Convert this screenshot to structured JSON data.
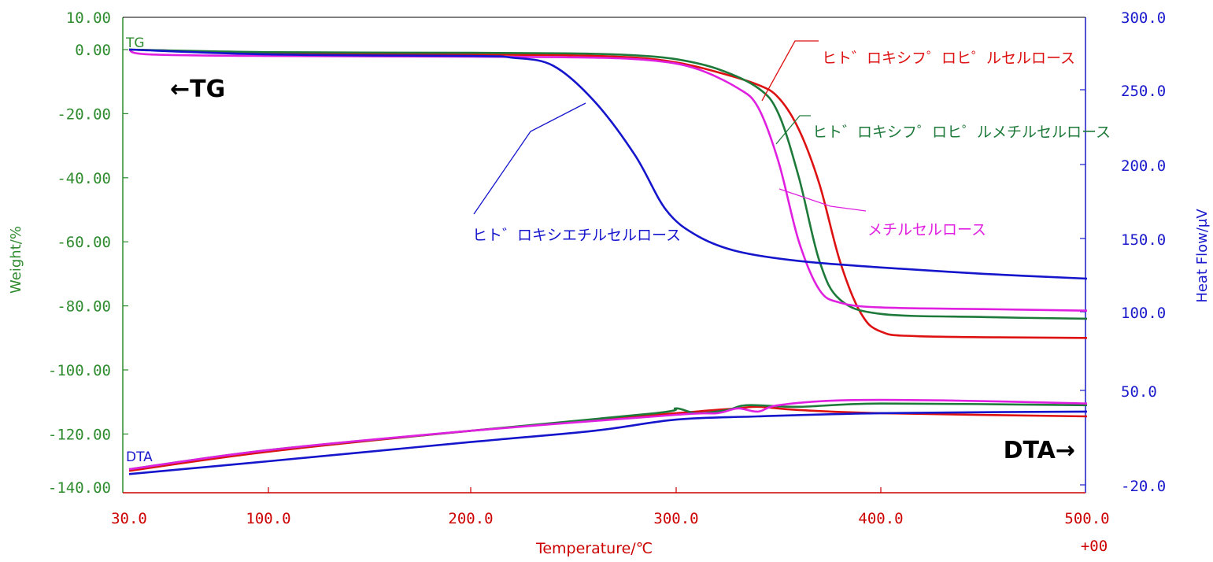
{
  "chart_data": {
    "type": "line",
    "xlabel": "Temperature/℃",
    "x_suffix": "+00",
    "ylabel_left": "Weight/%",
    "ylabel_right": "Heat Flow/μV",
    "x_ticks": [
      "30.0",
      "100.0",
      "200.0",
      "300.0",
      "400.0",
      "500.0"
    ],
    "y_left_ticks": [
      "10.00",
      "0.00",
      "-20.00",
      "-40.00",
      "-60.00",
      "-80.00",
      "-100.00",
      "-120.00",
      "-140.00"
    ],
    "y_right_ticks": [
      "300.0",
      "250.0",
      "200.0",
      "150.0",
      "100.0",
      "50.0",
      "-20.0"
    ],
    "xlim": [
      30,
      500
    ],
    "ylim_left": [
      -140,
      10
    ],
    "grid": false,
    "annotations": {
      "tg_arrow": "←TG",
      "dta_arrow": "DTA→",
      "tg_tag": "TG",
      "dta_tag": "DTA"
    },
    "colors": {
      "axis_left": "#2e8b2e",
      "axis_right": "#1a1acc",
      "axis_x": "#cc0000",
      "hpc": "#dd1111",
      "hpmc": "#1e7a3a",
      "mc": "#e020e0",
      "hec": "#1515cc"
    },
    "series": [
      {
        "name": "ヒト゛ロキシフ゜ロヒ゜ルセルロース",
        "color_key": "hpc",
        "tg": [
          [
            30,
            0
          ],
          [
            100,
            -1
          ],
          [
            200,
            -1.5
          ],
          [
            250,
            -1.8
          ],
          [
            280,
            -2.5
          ],
          [
            300,
            -4
          ],
          [
            320,
            -7
          ],
          [
            340,
            -11
          ],
          [
            350,
            -15
          ],
          [
            360,
            -25
          ],
          [
            370,
            -42
          ],
          [
            380,
            -66
          ],
          [
            390,
            -82
          ],
          [
            400,
            -88
          ],
          [
            420,
            -89.5
          ],
          [
            500,
            -90
          ]
        ],
        "dta": [
          [
            30,
            -131.5
          ],
          [
            100,
            -125.5
          ],
          [
            200,
            -119
          ],
          [
            300,
            -113.5
          ],
          [
            330,
            -112
          ],
          [
            340,
            -111.5
          ],
          [
            360,
            -112.5
          ],
          [
            400,
            -113.5
          ],
          [
            500,
            -114.5
          ]
        ]
      },
      {
        "name": "ヒト゛ロキシフ゜ロヒ゜ルメチルセルロース",
        "color_key": "hpmc",
        "tg": [
          [
            30,
            0
          ],
          [
            100,
            -0.8
          ],
          [
            200,
            -1
          ],
          [
            250,
            -1.2
          ],
          [
            280,
            -1.8
          ],
          [
            300,
            -3
          ],
          [
            320,
            -6
          ],
          [
            340,
            -12
          ],
          [
            350,
            -20
          ],
          [
            360,
            -40
          ],
          [
            370,
            -66
          ],
          [
            380,
            -78
          ],
          [
            400,
            -82.5
          ],
          [
            450,
            -83.5
          ],
          [
            500,
            -84
          ]
        ],
        "dta": [
          [
            30,
            -131
          ],
          [
            100,
            -125
          ],
          [
            200,
            -119
          ],
          [
            290,
            -113.5
          ],
          [
            300,
            -112
          ],
          [
            310,
            -113.5
          ],
          [
            325,
            -112.5
          ],
          [
            335,
            -111
          ],
          [
            360,
            -111.5
          ],
          [
            400,
            -110.5
          ],
          [
            500,
            -111
          ]
        ]
      },
      {
        "name": "メチルセルロース",
        "color_key": "mc",
        "tg": [
          [
            30,
            0
          ],
          [
            40,
            -1.5
          ],
          [
            100,
            -2
          ],
          [
            200,
            -2.2
          ],
          [
            260,
            -2.5
          ],
          [
            290,
            -3.5
          ],
          [
            310,
            -6
          ],
          [
            330,
            -12
          ],
          [
            340,
            -18
          ],
          [
            350,
            -35
          ],
          [
            360,
            -60
          ],
          [
            370,
            -75
          ],
          [
            380,
            -79
          ],
          [
            400,
            -80.5
          ],
          [
            450,
            -81
          ],
          [
            500,
            -81.5
          ]
        ],
        "dta": [
          [
            30,
            -131
          ],
          [
            100,
            -125
          ],
          [
            200,
            -119
          ],
          [
            300,
            -114
          ],
          [
            320,
            -113.5
          ],
          [
            330,
            -112
          ],
          [
            340,
            -113
          ],
          [
            350,
            -111
          ],
          [
            380,
            -109.5
          ],
          [
            430,
            -109.5
          ],
          [
            500,
            -110.5
          ]
        ]
      },
      {
        "name": "ヒト゛ロキシエチルセルロース",
        "color_key": "hec",
        "tg": [
          [
            30,
            0
          ],
          [
            100,
            -1.5
          ],
          [
            200,
            -2
          ],
          [
            220,
            -2.5
          ],
          [
            240,
            -5
          ],
          [
            260,
            -16
          ],
          [
            280,
            -33
          ],
          [
            295,
            -50
          ],
          [
            310,
            -58
          ],
          [
            330,
            -63
          ],
          [
            360,
            -66
          ],
          [
            400,
            -68
          ],
          [
            450,
            -70
          ],
          [
            500,
            -71.5
          ]
        ],
        "dta": [
          [
            30,
            -132.5
          ],
          [
            100,
            -128.5
          ],
          [
            200,
            -122.5
          ],
          [
            260,
            -119
          ],
          [
            300,
            -115.5
          ],
          [
            340,
            -114.5
          ],
          [
            400,
            -113.5
          ],
          [
            500,
            -113
          ]
        ]
      }
    ]
  }
}
